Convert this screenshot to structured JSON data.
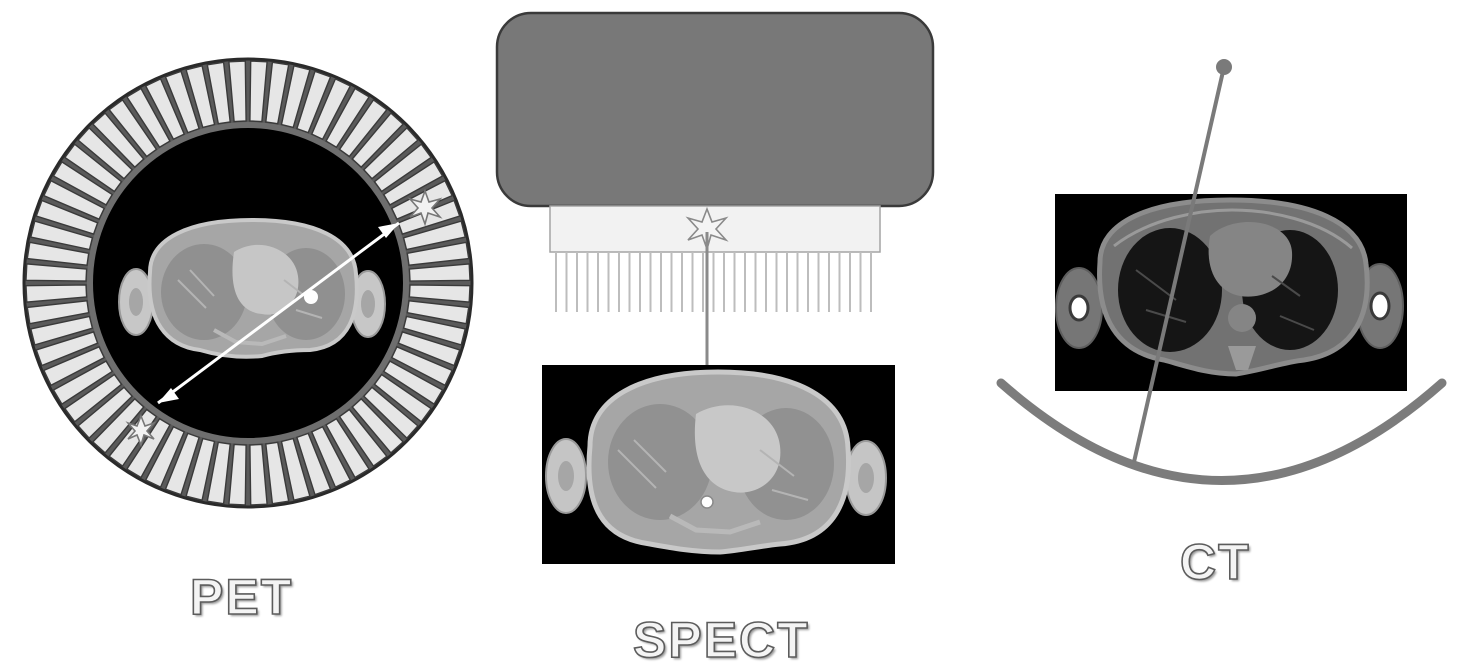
{
  "labels": {
    "pet": "PET",
    "spect": "SPECT",
    "ct": "CT"
  },
  "colors": {
    "background": "#ffffff",
    "detector_face": "#e6e6e6",
    "detector_edge": "#3a3a3a",
    "gantry_dark": "#000000",
    "gamma_camera": "#787878",
    "collimator": "#f1f1f1",
    "collimator_septa": "#bdbdbd",
    "ct_ray": "#7a7a7a",
    "ct_detector_arc": "#7c7c7c",
    "tissue_light": "#c4c4c4",
    "tissue_mid": "#a6a6a6",
    "lung_mid": "#8c8c8c",
    "ct_lung": "#1a1a1a",
    "ct_tissue": "#767676"
  },
  "icons": {
    "pet_annihilation": "star-burst-icon",
    "spect_emission": "star-burst-icon",
    "ct_source": "x-ray-source-dot-icon"
  }
}
